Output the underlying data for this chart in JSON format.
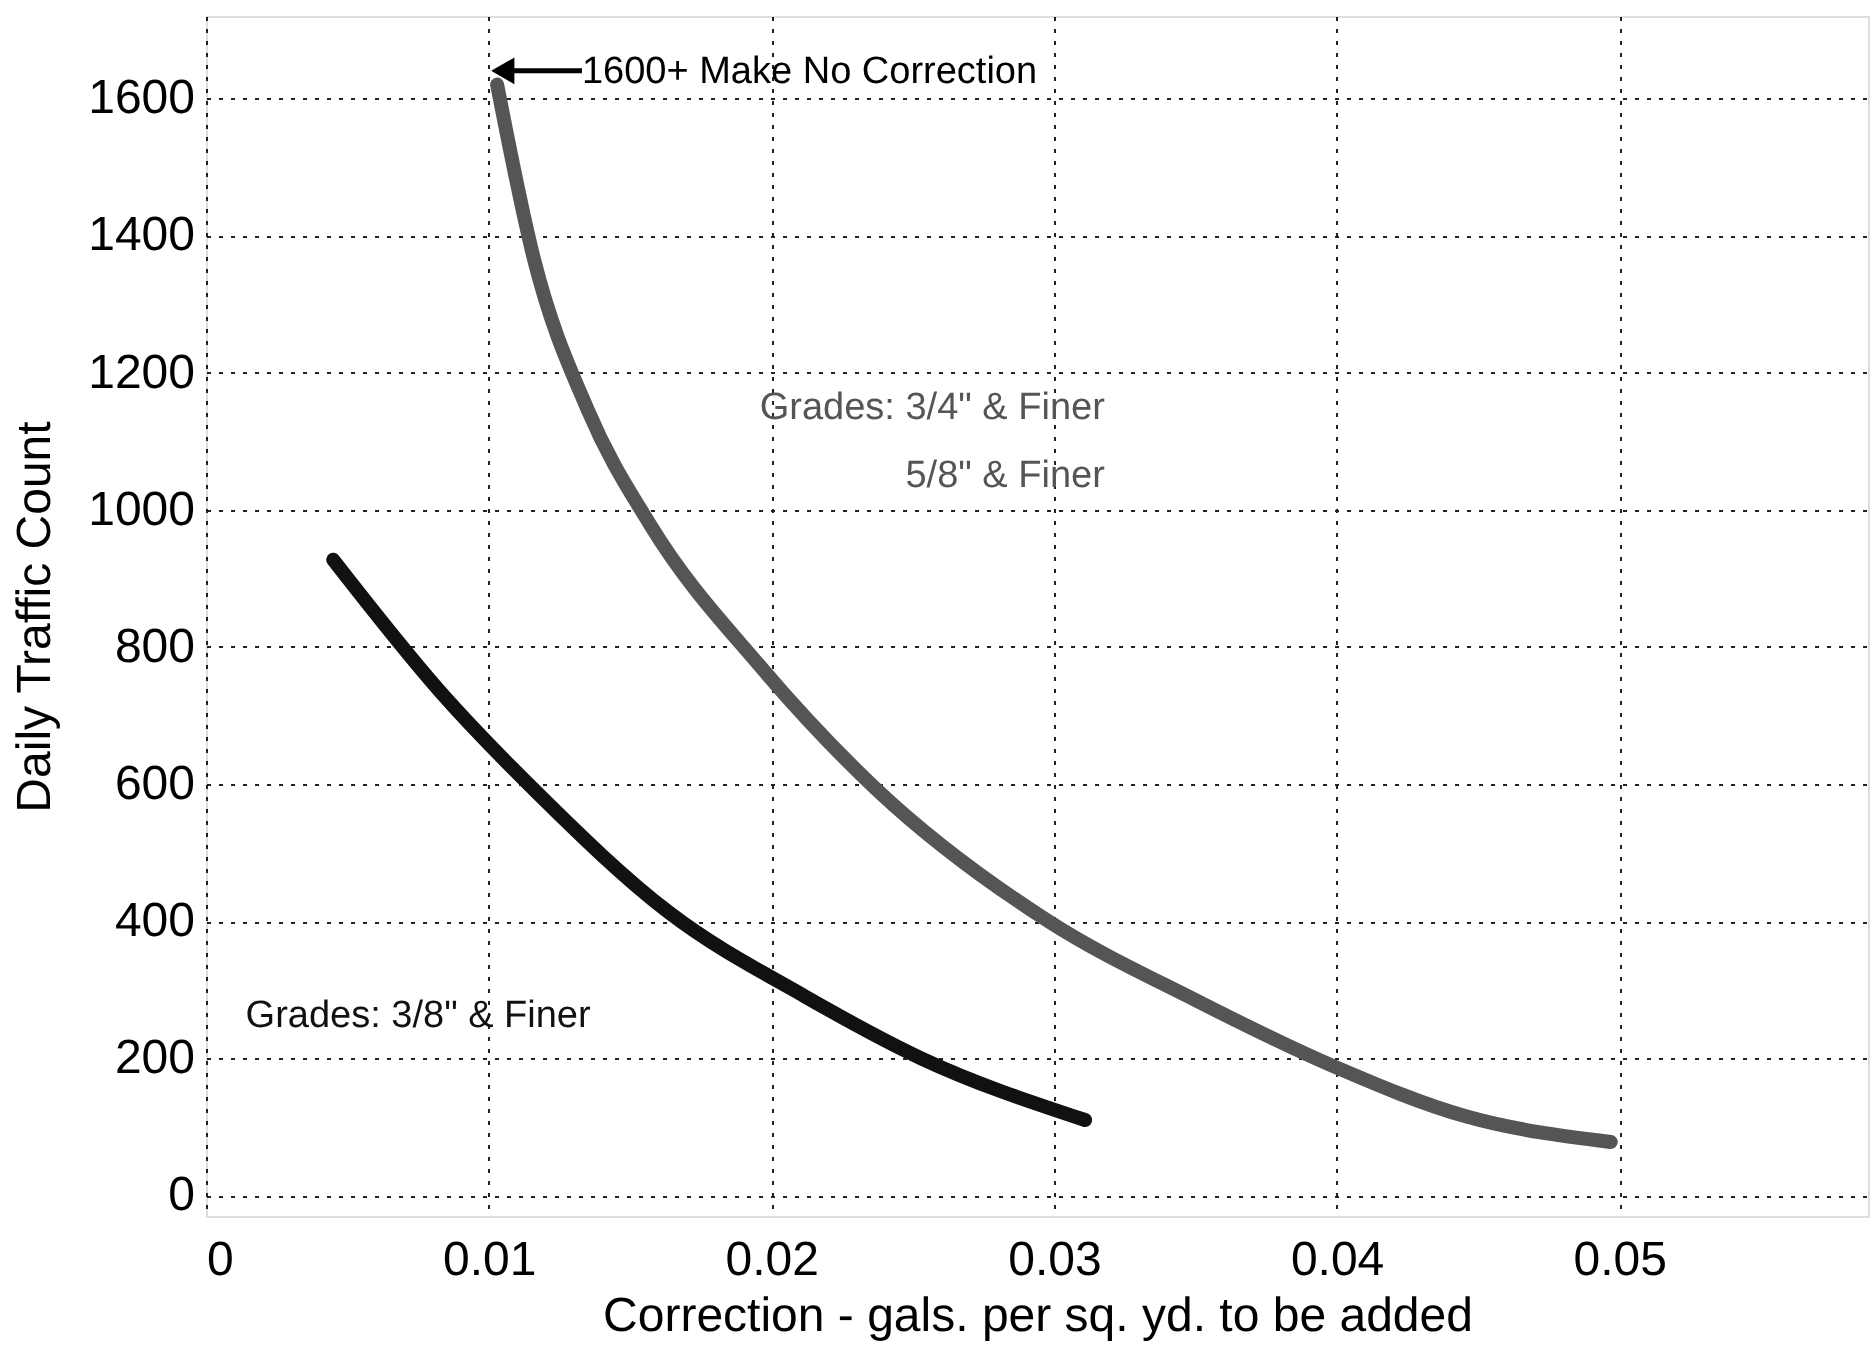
{
  "chart_data": {
    "type": "line",
    "xlabel": "Correction - gals. per sq. yd. to be added",
    "ylabel": "Daily Traffic Count",
    "xlim": [
      0,
      0.0588
    ],
    "ylim": [
      -30,
      1720
    ],
    "xticks": [
      0,
      0.01,
      0.02,
      0.03,
      0.04,
      0.05
    ],
    "yticks": [
      0,
      200,
      400,
      600,
      800,
      1000,
      1200,
      1400,
      1600
    ],
    "grid": true,
    "line_style": "solid",
    "series": [
      {
        "name": "Grades: 3/4\" & Finer\n5/8\" & Finer",
        "color": "#555555",
        "x": [
          0.0103,
          0.0116,
          0.0135,
          0.0157,
          0.0196,
          0.0237,
          0.0298,
          0.035,
          0.0398,
          0.0446,
          0.0497
        ],
        "values": [
          1620,
          1366,
          1146,
          979,
          772,
          593,
          400,
          285,
          190,
          115,
          78
        ]
      },
      {
        "name": "Grades: 3/8\" & Finer",
        "color": "#111111",
        "x": [
          0.0045,
          0.0083,
          0.0116,
          0.0164,
          0.0212,
          0.0253,
          0.0311
        ],
        "values": [
          927,
          734,
          592,
          412,
          290,
          200,
          110
        ]
      }
    ],
    "annotations": [
      {
        "text": "1600+ Make No Correction",
        "x": 0.0105,
        "y": 1640
      }
    ]
  }
}
